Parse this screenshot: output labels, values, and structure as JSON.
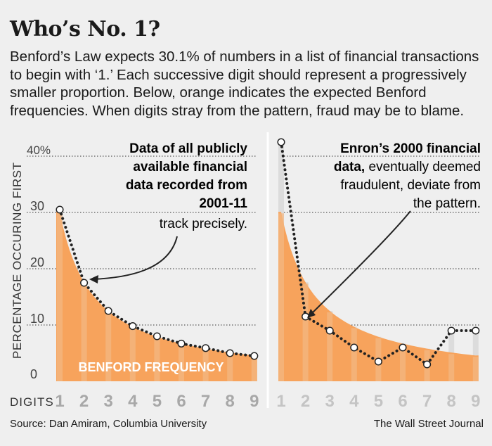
{
  "header": {
    "title": "Who’s No. 1?",
    "description": "Benford’s Law expects 30.1% of numbers in a list of financial transactions to begin with ‘1.’ Each successive digit should represent a progressively smaller proportion. Below, orange indicates the expected Benford frequencies. When digits stray from the pattern, fraud may be to blame."
  },
  "footer": {
    "source": "Source: Dan Amiram, Columbia University",
    "credit": "The Wall Street Journal"
  },
  "colors": {
    "benford_fill": "#f7a35c",
    "dot_stroke": "#222222",
    "background": "#efefef"
  },
  "chart_data": [
    {
      "type": "area",
      "categories": [
        "1",
        "2",
        "3",
        "4",
        "5",
        "6",
        "7",
        "8",
        "9"
      ],
      "ylabel": "PERCENTAGE OCCURING FIRST",
      "xlabel": "DIGITS",
      "ylim": [
        0,
        40
      ],
      "y_ticks": [
        "0",
        "10",
        "20",
        "30",
        "40%"
      ],
      "area_label": "BENFORD FREQUENCY",
      "series": [
        {
          "name": "BENFORD FREQUENCY",
          "values": [
            30.1,
            17.6,
            12.5,
            9.7,
            7.9,
            6.7,
            5.8,
            5.1,
            4.6
          ]
        },
        {
          "values": [
            30.5,
            17.5,
            12.5,
            9.8,
            8.0,
            6.7,
            5.9,
            5.0,
            4.5
          ]
        }
      ],
      "annotation_bold": "Data of all publicly available financial data recorded from 2001-11",
      "annotation_rest": "track precisely."
    },
    {
      "type": "area",
      "categories": [
        "1",
        "2",
        "3",
        "4",
        "5",
        "6",
        "7",
        "8",
        "9"
      ],
      "ylim": [
        0,
        40
      ],
      "series": [
        {
          "name": "BENFORD FREQUENCY",
          "values": [
            30.1,
            17.6,
            12.5,
            9.7,
            7.9,
            6.7,
            5.8,
            5.1,
            4.6
          ]
        },
        {
          "values": [
            42.5,
            11.5,
            9.0,
            6.0,
            3.5,
            6.0,
            3.0,
            9.0,
            9.0
          ]
        }
      ],
      "annotation_bold": "Enron’s 2000 financial data,",
      "annotation_rest": "eventually deemed fraudulent, deviate from the pattern."
    }
  ]
}
